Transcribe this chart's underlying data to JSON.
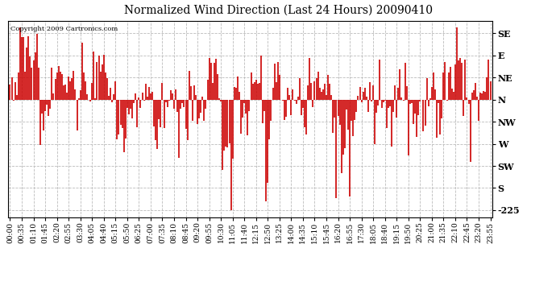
{
  "title": "Normalized Wind Direction (Last 24 Hours) 20090410",
  "copyright": "Copyright 2009 Cartronics.com",
  "background_color": "#ffffff",
  "plot_bg_color": "#ffffff",
  "line_color": "#cc0000",
  "grid_color": "#bbbbbb",
  "ytick_labels": [
    "SE",
    "E",
    "NE",
    "N",
    "NW",
    "W",
    "SW",
    "S",
    "-225"
  ],
  "ytick_values": [
    135,
    90,
    45,
    0,
    -45,
    -90,
    -135,
    -180,
    -225
  ],
  "ylim": [
    -240,
    160
  ],
  "xlim_min": -5,
  "xlim_max": 1440,
  "seed": 1234,
  "n_points": 288,
  "tick_interval_minutes": 35,
  "title_fontsize": 10,
  "tick_fontsize": 6.5,
  "ytick_fontsize": 8
}
